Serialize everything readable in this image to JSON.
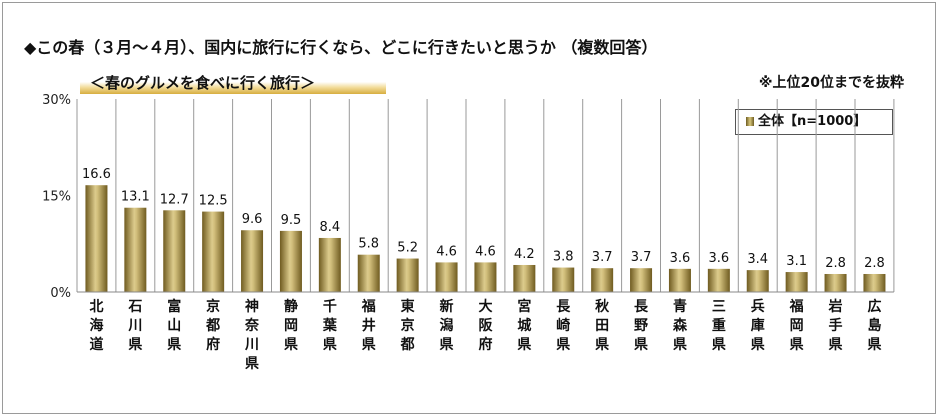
{
  "chart_data": {
    "type": "bar",
    "title": "◆この春（３月～４月）、国内に旅行に行くなら、どこに行きたいと思うか （複数回答）",
    "subtitle": "＜春のグルメを食べに行く旅行＞",
    "note": "※上位20位までを抜粋",
    "legend": "全体【n=1000】",
    "legend_position": "top-right",
    "categories": [
      "北海道",
      "石川県",
      "富山県",
      "京都府",
      "神奈川県",
      "静岡県",
      "千葉県",
      "福井県",
      "東京都",
      "新潟県",
      "大阪府",
      "宮城県",
      "長崎県",
      "秋田県",
      "長野県",
      "青森県",
      "三重県",
      "兵庫県",
      "福岡県",
      "岩手県",
      "広島県"
    ],
    "values": [
      16.6,
      13.1,
      12.7,
      12.5,
      9.6,
      9.5,
      8.4,
      5.8,
      5.2,
      4.6,
      4.6,
      4.2,
      3.8,
      3.7,
      3.7,
      3.6,
      3.6,
      3.4,
      3.1,
      2.8,
      2.8
    ],
    "value_labels": [
      "16.6",
      "13.1",
      "12.7",
      "12.5",
      "9.6",
      "9.5",
      "8.4",
      "5.8",
      "5.2",
      "4.6",
      "4.6",
      "4.2",
      "3.8",
      "3.7",
      "3.7",
      "3.6",
      "3.6",
      "3.4",
      "3.1",
      "2.8",
      "2.8"
    ],
    "yticks": [
      "0%",
      "15%",
      "30%"
    ],
    "ylim": [
      0,
      30
    ],
    "grid": false,
    "colors": {
      "bar_dark": "#7a6526",
      "bar_light": "#d9c98a",
      "separator": "#9a9a9a"
    }
  }
}
